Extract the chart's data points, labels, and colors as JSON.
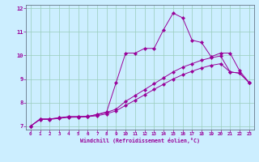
{
  "xlabel": "Windchill (Refroidissement éolien,°C)",
  "background_color": "#cceeff",
  "line_color": "#990099",
  "grid_color": "#99ccbb",
  "xlim": [
    -0.5,
    23.5
  ],
  "ylim": [
    6.85,
    12.15
  ],
  "x_ticks": [
    0,
    1,
    2,
    3,
    4,
    5,
    6,
    7,
    8,
    9,
    10,
    11,
    12,
    13,
    14,
    15,
    16,
    17,
    18,
    19,
    20,
    21,
    22,
    23
  ],
  "y_ticks": [
    7,
    8,
    9,
    10,
    11,
    12
  ],
  "curve1_x": [
    0,
    1,
    2,
    3,
    4,
    5,
    6,
    7,
    8,
    9,
    10,
    11,
    12,
    13,
    14,
    15,
    16,
    17,
    18,
    19,
    20,
    21,
    22,
    23
  ],
  "curve1_y": [
    7.0,
    7.3,
    7.3,
    7.35,
    7.4,
    7.4,
    7.4,
    7.5,
    7.6,
    8.85,
    10.1,
    10.1,
    10.3,
    10.3,
    11.1,
    11.8,
    11.6,
    10.65,
    10.55,
    9.95,
    10.1,
    10.1,
    9.35,
    8.85
  ],
  "curve2_x": [
    0,
    1,
    2,
    3,
    4,
    5,
    6,
    7,
    8,
    9,
    10,
    11,
    12,
    13,
    14,
    15,
    16,
    17,
    18,
    19,
    20,
    21,
    22,
    23
  ],
  "curve2_y": [
    7.0,
    7.3,
    7.3,
    7.35,
    7.4,
    7.4,
    7.42,
    7.48,
    7.58,
    7.72,
    8.05,
    8.3,
    8.55,
    8.8,
    9.05,
    9.3,
    9.5,
    9.65,
    9.8,
    9.9,
    9.98,
    9.3,
    9.25,
    8.85
  ],
  "curve3_x": [
    0,
    1,
    2,
    3,
    4,
    5,
    6,
    7,
    8,
    9,
    10,
    11,
    12,
    13,
    14,
    15,
    16,
    17,
    18,
    19,
    20,
    21,
    22,
    23
  ],
  "curve3_y": [
    7.0,
    7.28,
    7.28,
    7.33,
    7.37,
    7.38,
    7.4,
    7.44,
    7.52,
    7.65,
    7.88,
    8.1,
    8.33,
    8.56,
    8.78,
    9.0,
    9.18,
    9.33,
    9.47,
    9.58,
    9.65,
    9.3,
    9.25,
    8.85
  ]
}
